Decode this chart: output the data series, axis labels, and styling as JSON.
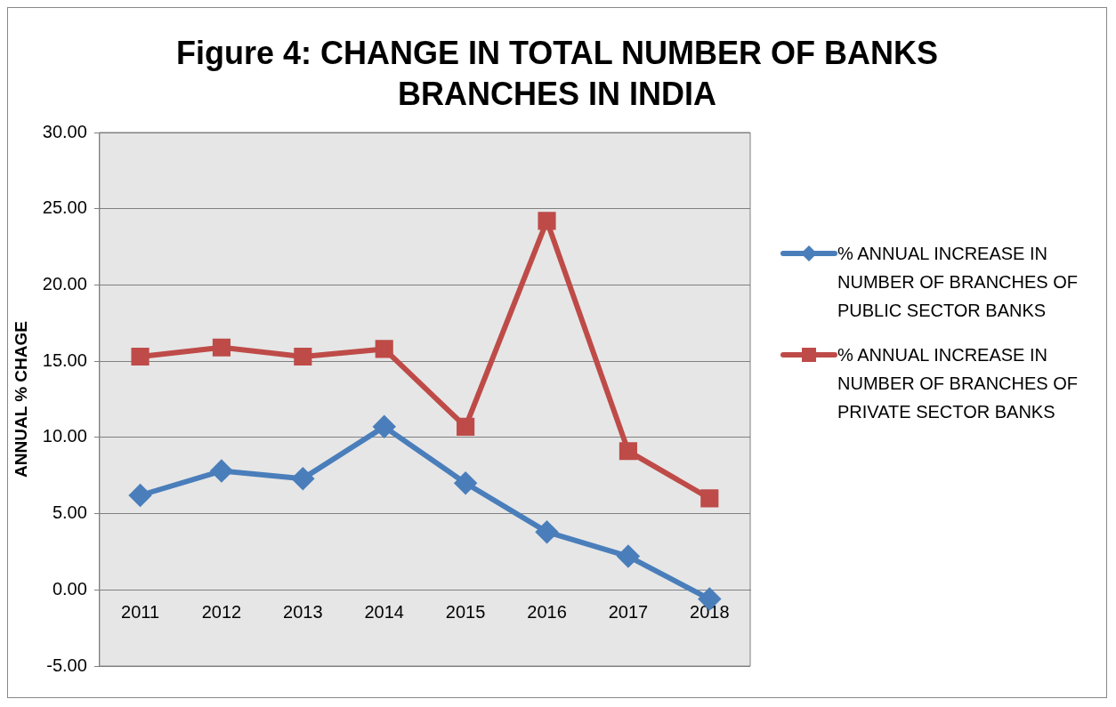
{
  "chart_data": {
    "type": "line",
    "title": "Figure 4: CHANGE IN TOTAL NUMBER OF BANKS BRANCHES IN INDIA",
    "ylabel": "ANNUAL % CHAGE",
    "categories": [
      "2011",
      "2012",
      "2013",
      "2014",
      "2015",
      "2016",
      "2017",
      "2018"
    ],
    "series": [
      {
        "name": "% ANNUAL INCREASE IN NUMBER OF BRANCHES OF PUBLIC SECTOR BANKS",
        "color": "#4a7ebb",
        "marker": "diamond",
        "values": [
          6.2,
          7.8,
          7.3,
          10.7,
          7.0,
          3.8,
          2.2,
          -0.6
        ]
      },
      {
        "name": "% ANNUAL INCREASE IN NUMBER OF BRANCHES OF PRIVATE SECTOR BANKS",
        "color": "#be4b48",
        "marker": "square",
        "values": [
          15.3,
          15.9,
          15.3,
          15.8,
          10.7,
          24.2,
          9.1,
          6.0
        ]
      }
    ],
    "ylim": [
      -5,
      30
    ],
    "yticks": [
      {
        "value": -5,
        "label": "-5.00"
      },
      {
        "value": 0,
        "label": "0.00"
      },
      {
        "value": 5,
        "label": "5.00"
      },
      {
        "value": 10,
        "label": "10.00"
      },
      {
        "value": 15,
        "label": "15.00"
      },
      {
        "value": 20,
        "label": "20.00"
      },
      {
        "value": 25,
        "label": "25.00"
      },
      {
        "value": 30,
        "label": "30.00"
      }
    ],
    "grid": "y",
    "legend": "right",
    "line_style": "solid"
  }
}
